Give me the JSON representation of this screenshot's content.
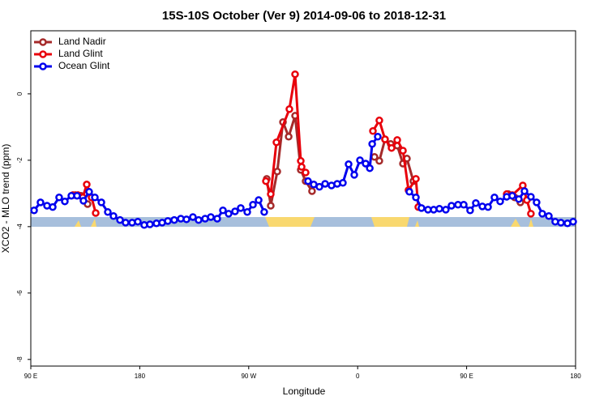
{
  "chart_data": {
    "type": "line",
    "title": "15S-10S October (Ver 9)   2014-09-06 to 2018-12-31",
    "x_label": "Longitude",
    "y_label": "XCO2 - MLO trend (ppm)",
    "xlim": [
      90,
      540
    ],
    "ylim": [
      -8.2,
      1.9
    ],
    "xticks": [
      {
        "value": 90,
        "label": "90 E"
      },
      {
        "value": 180,
        "label": "180"
      },
      {
        "value": 270,
        "label": "90 W"
      },
      {
        "value": 360,
        "label": "0"
      },
      {
        "value": 450,
        "label": "90 E"
      },
      {
        "value": 540,
        "label": "180"
      }
    ],
    "yticks": [
      -8,
      -6,
      -4,
      -2,
      0
    ],
    "legend": "top-left",
    "series": [
      {
        "name": "Land Nadir",
        "color": "#a52a2a",
        "x": [
          126.8,
          131.5,
          136.9,
          null,
          284.9,
          288.2,
          293.6,
          298.3,
          303.0,
          308.3,
          313.0,
          317.0,
          322.3,
          null,
          373.9,
          377.9,
          382.6,
          387.3,
          392.7,
          397.4,
          400.7,
          406.0,
          null,
          484.4,
          489.7,
          494.4
        ],
        "values": [
          -3.05,
          -3.07,
          -3.32,
          null,
          -2.56,
          -3.37,
          -2.34,
          -0.85,
          -1.29,
          -0.66,
          -2.29,
          -2.63,
          -2.93,
          null,
          -1.9,
          -2.02,
          -1.37,
          -1.51,
          -1.56,
          -2.1,
          -1.95,
          -2.63,
          null,
          -3.02,
          -3.12,
          -3.27
        ]
      },
      {
        "name": "Land Glint",
        "color": "#e8000b",
        "x": [
          124.8,
          128.9,
          132.9,
          136.2,
          140.2,
          143.6,
          null,
          284.2,
          288.2,
          292.9,
          303.6,
          308.3,
          313.0,
          313.7,
          317.0,
          null,
          372.6,
          377.9,
          382.6,
          388.0,
          392.7,
          397.4,
          402.0,
          408.1,
          410.1,
          null,
          483.1,
          487.7,
          496.4,
          499.8,
          503.1
        ],
        "values": [
          -3.05,
          -3.05,
          -3.12,
          -2.73,
          -3.12,
          -3.59,
          null,
          -2.63,
          -3.02,
          -1.46,
          -0.46,
          0.59,
          -2.02,
          -2.2,
          -2.37,
          null,
          -1.12,
          -0.8,
          -1.37,
          -1.63,
          -1.39,
          -1.71,
          -2.9,
          -2.56,
          -3.41,
          null,
          -3.02,
          -3.05,
          -2.76,
          -3.2,
          -3.61
        ]
      },
      {
        "name": "Ocean Glint",
        "color": "#0000ee",
        "x": [
          92.7,
          98.0,
          103.4,
          108.1,
          113.4,
          118.1,
          123.5,
          128.2,
          133.5,
          138.2,
          142.9,
          148.3,
          153.6,
          158.3,
          163.7,
          168.3,
          173.7,
          178.4,
          183.7,
          188.4,
          193.8,
          198.5,
          203.2,
          208.5,
          213.9,
          218.6,
          223.9,
          228.6,
          234.0,
          238.7,
          244.0,
          248.7,
          253.4,
          258.7,
          263.4,
          268.8,
          273.5,
          278.2,
          282.8,
          null,
          319.0,
          323.7,
          328.4,
          333.1,
          338.4,
          343.1,
          347.8,
          352.5,
          357.2,
          361.9,
          366.6,
          370.0,
          372.0,
          376.6,
          null,
          402.7,
          408.1,
          412.7,
          418.1,
          422.8,
          427.5,
          432.8,
          437.5,
          442.9,
          447.6,
          452.9,
          457.6,
          463.0,
          467.7,
          473.0,
          477.7,
          483.1,
          487.7,
          493.1,
          497.8,
          503.1,
          507.8,
          512.5,
          517.9,
          523.2,
          527.9,
          533.3,
          538.0
        ],
        "values": [
          -3.51,
          -3.27,
          -3.37,
          -3.41,
          -3.12,
          -3.24,
          -3.07,
          -3.07,
          -3.22,
          -2.95,
          -3.12,
          -3.27,
          -3.56,
          -3.68,
          -3.8,
          -3.88,
          -3.88,
          -3.85,
          -3.95,
          -3.93,
          -3.9,
          -3.88,
          -3.83,
          -3.8,
          -3.76,
          -3.78,
          -3.71,
          -3.8,
          -3.76,
          -3.71,
          -3.76,
          -3.51,
          -3.61,
          -3.54,
          -3.44,
          -3.56,
          -3.34,
          -3.2,
          -3.56,
          null,
          -2.63,
          -2.73,
          -2.8,
          -2.71,
          -2.76,
          -2.71,
          -2.68,
          -2.12,
          -2.44,
          -2.0,
          -2.1,
          -2.24,
          -1.51,
          -1.29,
          null,
          -2.95,
          -3.12,
          -3.44,
          -3.49,
          -3.49,
          -3.46,
          -3.49,
          -3.37,
          -3.34,
          -3.34,
          -3.51,
          -3.29,
          -3.39,
          -3.41,
          -3.12,
          -3.24,
          -3.1,
          -3.07,
          -3.17,
          -2.93,
          -3.1,
          -3.27,
          -3.61,
          -3.68,
          -3.85,
          -3.88,
          -3.9,
          -3.85
        ]
      }
    ]
  }
}
